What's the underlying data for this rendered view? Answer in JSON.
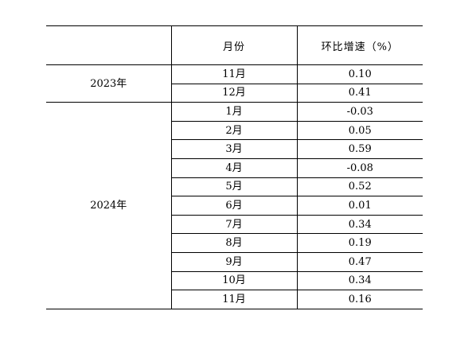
{
  "table": {
    "headers": [
      "",
      "月份",
      "环比增速（%）"
    ],
    "groups": [
      {
        "year": "2023年",
        "rows": [
          {
            "month": "11月",
            "value": "0.10"
          },
          {
            "month": "12月",
            "value": "0.41"
          }
        ]
      },
      {
        "year": "2024年",
        "rows": [
          {
            "month": "1月",
            "value": "-0.03"
          },
          {
            "month": "2月",
            "value": "0.05"
          },
          {
            "month": "3月",
            "value": "0.59"
          },
          {
            "month": "4月",
            "value": "-0.08"
          },
          {
            "month": "5月",
            "value": "0.52"
          },
          {
            "month": "6月",
            "value": "0.01"
          },
          {
            "month": "7月",
            "value": "0.34"
          },
          {
            "month": "8月",
            "value": "0.19"
          },
          {
            "month": "9月",
            "value": "0.47"
          },
          {
            "month": "10月",
            "value": "0.34"
          },
          {
            "month": "11月",
            "value": "0.16"
          }
        ]
      }
    ]
  }
}
